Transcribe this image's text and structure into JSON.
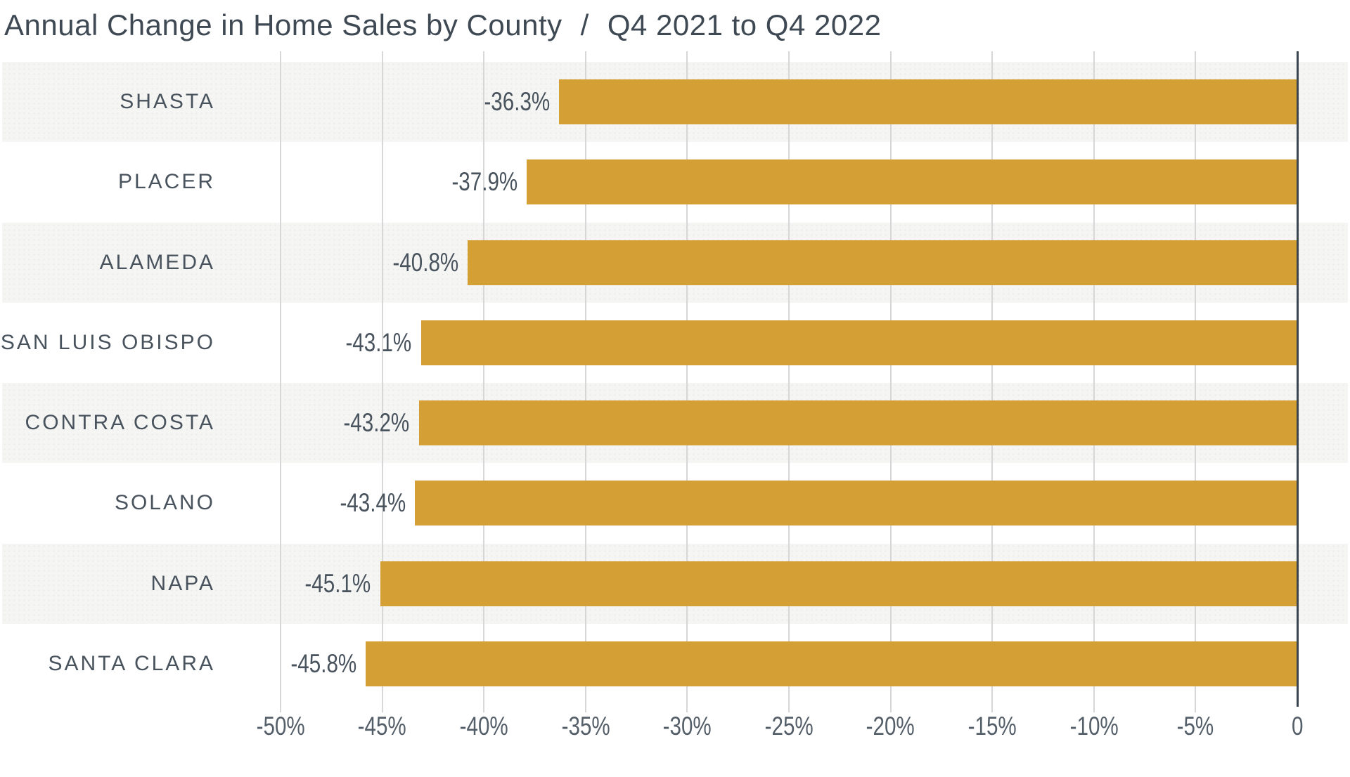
{
  "title": {
    "main": "Annual Change in Home Sales by County",
    "separator": "/",
    "period": "Q4 2021 to Q4 2022"
  },
  "chart_data": {
    "type": "bar",
    "orientation": "horizontal",
    "title": "Annual Change in Home Sales by County / Q4 2021 to Q4 2022",
    "categories": [
      "SHASTA",
      "PLACER",
      "ALAMEDA",
      "SAN LUIS OBISPO",
      "CONTRA COSTA",
      "SOLANO",
      "NAPA",
      "SANTA CLARA"
    ],
    "values": [
      -36.3,
      -37.9,
      -40.8,
      -43.1,
      -43.2,
      -43.4,
      -45.1,
      -45.8
    ],
    "value_labels": [
      "-36.3%",
      "-37.9%",
      "-40.8%",
      "-43.1%",
      "-43.2%",
      "-43.4%",
      "-45.1%",
      "-45.8%"
    ],
    "unit": "%",
    "xlabel": "",
    "ylabel": "",
    "xlim": [
      -50,
      0
    ],
    "x_ticks": [
      -50,
      -45,
      -40,
      -35,
      -30,
      -25,
      -20,
      -15,
      -10,
      -5,
      0
    ],
    "x_tick_labels": [
      "-50%",
      "-45%",
      "-40%",
      "-35%",
      "-30%",
      "-25%",
      "-20%",
      "-15%",
      "-10%",
      "-5%",
      "0"
    ],
    "grid": "vertical-on",
    "legend": "none",
    "row_striping": "alternate, first row shaded"
  },
  "colors": {
    "bar": "#D4A036",
    "row_stripe": "#F5F5F4",
    "gridline": "#D7D7D7",
    "zero_axis": "#3B454F",
    "title_text": "#3E4953",
    "category_text": "#49535D",
    "value_text": "#49535D",
    "axis_text": "#545E68",
    "background": "#FFFFFF"
  }
}
